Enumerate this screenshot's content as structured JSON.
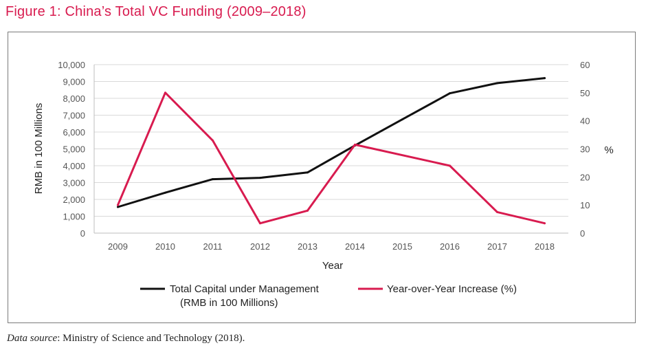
{
  "figure": {
    "title": "Figure 1: China’s Total VC Funding (2009–2018)",
    "source_prefix": "Data source",
    "source_text": ": Ministry of Science and Technology (2018)."
  },
  "chart_data": {
    "type": "line",
    "title": "China’s Total VC Funding (2009–2018)",
    "xlabel": "Year",
    "ylabel": "RMB in 100 Millions",
    "y2label": "%",
    "categories": [
      "2009",
      "2010",
      "2011",
      "2012",
      "2013",
      "2014",
      "2015",
      "2016",
      "2017",
      "2018"
    ],
    "ylim": [
      0,
      10000
    ],
    "y2lim": [
      0,
      60
    ],
    "y_ticks": [
      "0",
      "1,000",
      "2,000",
      "3,000",
      "4,000",
      "5,000",
      "6,000",
      "7,000",
      "8,000",
      "9,000",
      "10,000"
    ],
    "y2_ticks": [
      "0",
      "10",
      "20",
      "30",
      "40",
      "50",
      "60"
    ],
    "series": [
      {
        "name": "Total Capital under Management (RMB in 100 Millions)",
        "legend_line1": "Total Capital under Management",
        "legend_line2": "(RMB in 100 Millions)",
        "axis": "left",
        "color": "#111111",
        "values": [
          1550,
          2400,
          3200,
          3280,
          3600,
          5200,
          6750,
          8300,
          8900,
          9200
        ]
      },
      {
        "name": "Year-over-Year Increase (%)",
        "legend_line1": "Year-over-Year Increase (%)",
        "axis": "right",
        "color": "#d81b4f",
        "values": [
          10,
          50,
          33,
          3.5,
          8,
          31.5,
          null,
          24,
          7.5,
          3.5
        ]
      }
    ],
    "grid": true,
    "legend": "bottom"
  }
}
